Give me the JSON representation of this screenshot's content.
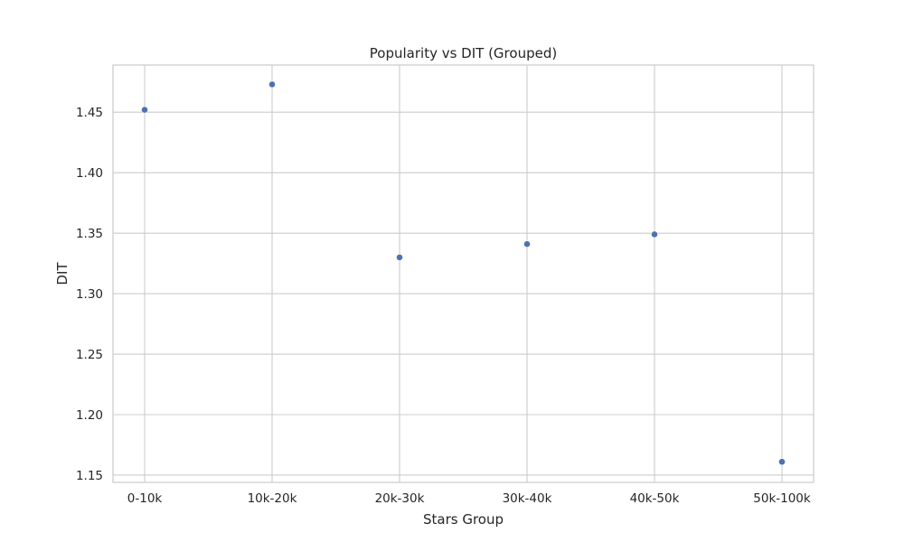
{
  "chart_data": {
    "type": "scatter",
    "title": "Popularity vs DIT (Grouped)",
    "xlabel": "Stars Group",
    "ylabel": "DIT",
    "categories": [
      "0-10k",
      "10k-20k",
      "20k-30k",
      "30k-40k",
      "40k-50k",
      "50k-100k"
    ],
    "series": [
      {
        "values": [
          1.452,
          1.473,
          1.33,
          1.341,
          1.349,
          1.161
        ],
        "color": "#4c72b0"
      }
    ],
    "ylim": [
      1.144,
      1.489
    ],
    "yticks": [
      "1.15",
      "1.20",
      "1.25",
      "1.30",
      "1.35",
      "1.40",
      "1.45"
    ],
    "grid": true,
    "colors": {
      "grid": "#cccccc",
      "spine": "#cccccc",
      "text": "#262626"
    }
  }
}
